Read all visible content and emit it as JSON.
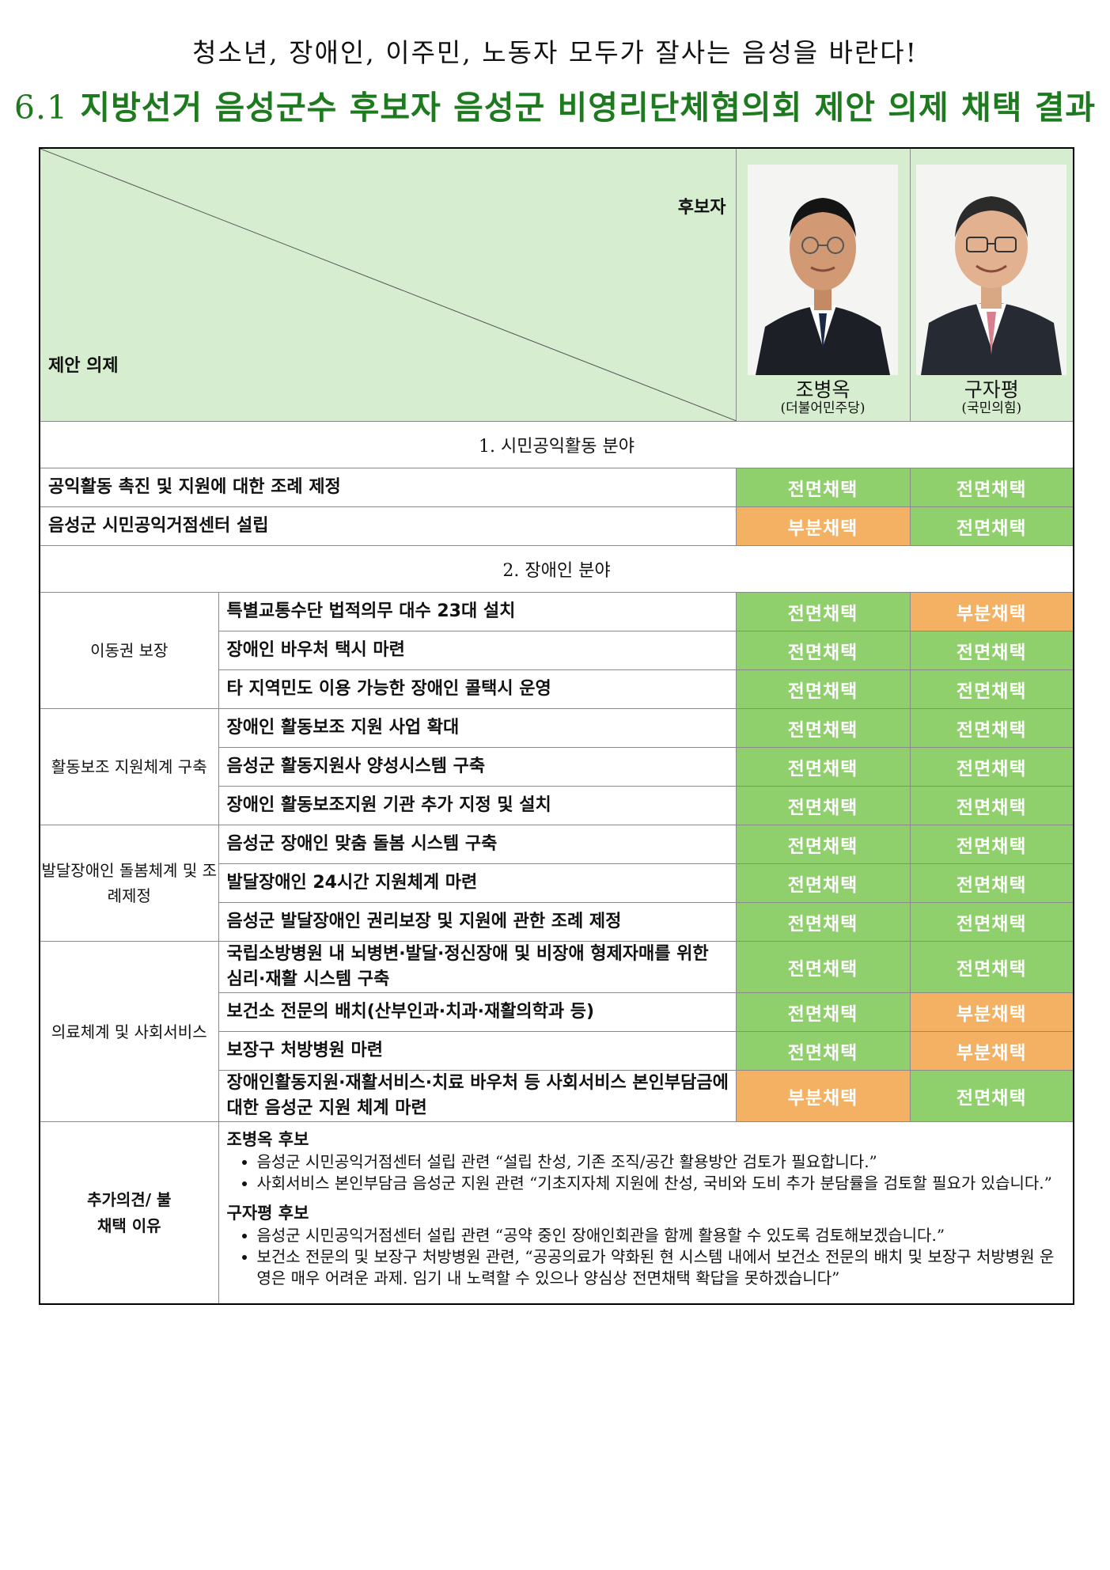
{
  "title": {
    "line1": "청소년, 장애인, 이주민, 노동자 모두가 잘사는 음성을 바란다!",
    "line2_num": "6.1",
    "line2_text": " 지방선거 음성군수 후보자 음성군 비영리단체협의회 제안 의제 채택 결과"
  },
  "header": {
    "candidate_label": "후보자",
    "agenda_label": "제안 의제",
    "candidates": [
      {
        "name": "조병옥",
        "party": "(더불어민주당)",
        "tie_color": "#1b2a44"
      },
      {
        "name": "구자평",
        "party": "(국민의힘)",
        "tie_color": "#d8808e"
      }
    ]
  },
  "sections": [
    {
      "title": "1. 시민공익활동 분야",
      "rows": [
        {
          "agenda": "공익활동 촉진 및 지원에 대한 조례 제정",
          "r1": "전면채택",
          "r2": "전면채택"
        },
        {
          "agenda": "음성군 시민공익거점센터 설립",
          "r1": "부분채택",
          "r2": "전면채택"
        }
      ]
    },
    {
      "title": "2. 장애인 분야",
      "groups": [
        {
          "category": "이동권 보장",
          "rows": [
            {
              "agenda": "특별교통수단 법적의무 대수 23대 설치",
              "r1": "전면채택",
              "r2": "부분채택"
            },
            {
              "agenda": "장애인 바우처 택시 마련",
              "r1": "전면채택",
              "r2": "전면채택"
            },
            {
              "agenda": "타 지역민도 이용 가능한 장애인 콜택시 운영",
              "r1": "전면채택",
              "r2": "전면채택"
            }
          ]
        },
        {
          "category": "활동보조 지원체계 구축",
          "rows": [
            {
              "agenda": "장애인 활동보조 지원 사업 확대",
              "r1": "전면채택",
              "r2": "전면채택"
            },
            {
              "agenda": "음성군 활동지원사 양성시스템 구축",
              "r1": "전면채택",
              "r2": "전면채택"
            },
            {
              "agenda": "장애인 활동보조지원 기관 추가 지정 및 설치",
              "r1": "전면채택",
              "r2": "전면채택"
            }
          ]
        },
        {
          "category": "발달장애인 돌봄체계 및 조례제정",
          "rows": [
            {
              "agenda": "음성군 장애인 맞춤 돌봄 시스템 구축",
              "r1": "전면채택",
              "r2": "전면채택"
            },
            {
              "agenda": "발달장애인 24시간 지원체계 마련",
              "r1": "전면채택",
              "r2": "전면채택"
            },
            {
              "agenda": "음성군 발달장애인 권리보장 및 지원에 관한 조례 제정",
              "r1": "전면채택",
              "r2": "전면채택"
            }
          ]
        },
        {
          "category": "의료체계 및 사회서비스",
          "rows": [
            {
              "agenda": "국립소방병원 내 뇌병변·발달·정신장애 및 비장애 형제자매를 위한 심리·재활 시스템 구축",
              "r1": "전면채택",
              "r2": "전면채택"
            },
            {
              "agenda": "보건소 전문의 배치(산부인과·치과·재활의학과 등)",
              "r1": "전면채택",
              "r2": "부분채택"
            },
            {
              "agenda": "보장구 처방병원 마련",
              "r1": "전면채택",
              "r2": "부분채택"
            },
            {
              "agenda": "장애인활동지원·재활서비스·치료 바우처 등 사회서비스 본인부담금에 대한 음성군 지원 체계 마련",
              "r1": "부분채택",
              "r2": "전면채택"
            }
          ]
        }
      ]
    }
  ],
  "notes": {
    "label": "추가의견/ 불채택 이유",
    "blocks": [
      {
        "who": "조병옥 후보",
        "items": [
          "음성군 시민공익거점센터 설립 관련 “설립 찬성, 기존 조직/공간 활용방안 검토가 필요합니다.”",
          "사회서비스 본인부담금 음성군 지원 관련 “기초지자체 지원에 찬성, 국비와 도비 추가 분담률을 검토할 필요가 있습니다.”"
        ]
      },
      {
        "who": "구자평 후보",
        "items": [
          "음성군 시민공익거점센터 설립 관련 “공약 중인 장애인회관을 함께 활용할 수 있도록 검토해보겠습니다.”",
          "보건소 전문의 및 보장구 처방병원 관련, “공공의료가 약화된 현 시스템 내에서 보건소 전문의 배치 및 보장구 처방병원 운영은 매우 어려운 과제. 임기 내 노력할 수 있으나 양심상 전면채택 확답을 못하겠습니다”"
        ]
      }
    ]
  },
  "colors": {
    "full": "#8fcf6c",
    "partial": "#f4b163",
    "header_bg": "#d6eecf",
    "title_green": "#1e7a1e"
  }
}
